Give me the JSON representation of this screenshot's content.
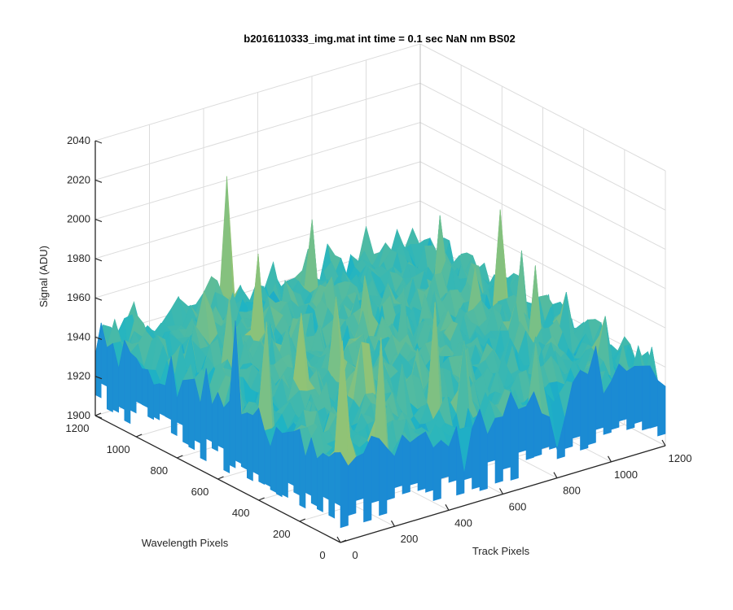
{
  "chart_data": {
    "type": "surface",
    "title": "b2016110333_img.mat int time = 0.1 sec  NaN nm BS02",
    "xlabel": "Track Pixels",
    "ylabel": "Wavelength Pixels",
    "zlabel": "Signal (ADU)",
    "x_ticks": [
      "0",
      "200",
      "400",
      "600",
      "800",
      "1000",
      "1200"
    ],
    "y_ticks": [
      "0",
      "200",
      "400",
      "600",
      "800",
      "1000",
      "1200"
    ],
    "z_ticks": [
      "1900",
      "1920",
      "1940",
      "1960",
      "1980",
      "2000",
      "2020",
      "2040"
    ],
    "xlim": [
      0,
      1200
    ],
    "ylim": [
      0,
      1200
    ],
    "zlim": [
      1900,
      2040
    ],
    "grid": true,
    "view": "3-D, azimuth -37.5, elevation 30",
    "surface_description": "noisy detector dark frame, signal roughly 1930-1945 ADU with spikes up to about 2030 and dips to about 1900",
    "surface_mean": 1938,
    "surface_min": 1900,
    "surface_max": 2030,
    "colormap": "parula",
    "colors": {
      "low": "#1a7fd8",
      "mid": "#1fb4c4",
      "high": "#b9c85a",
      "axis": "#262626",
      "grid": "#dcdcdc"
    }
  }
}
